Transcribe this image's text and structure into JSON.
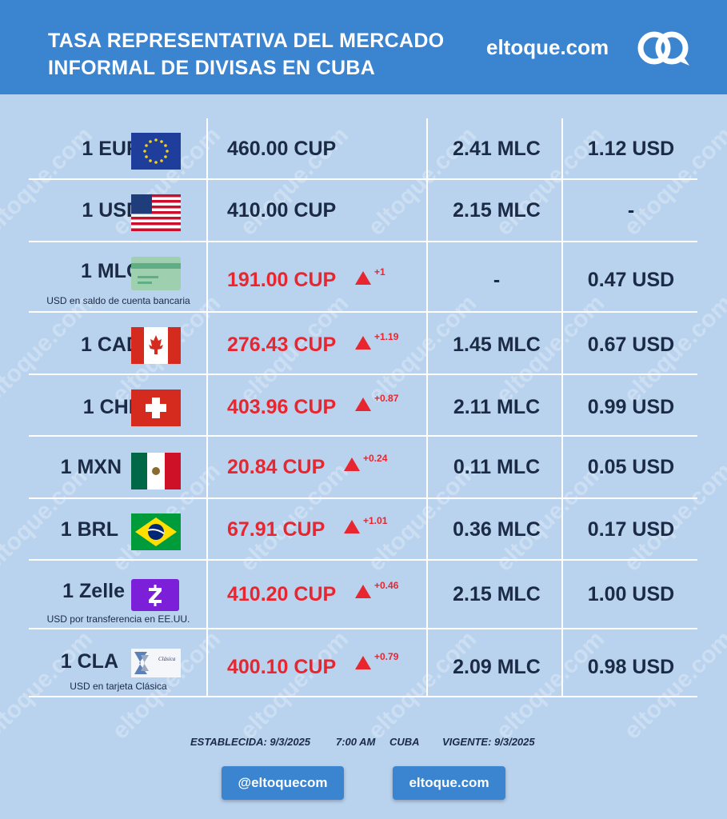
{
  "header": {
    "title_line1": "TASA REPRESENTATIVA DEL MERCADO",
    "title_line2": "INFORMAL DE DIVISAS EN CUBA",
    "brand": "eltoque.com"
  },
  "watermark_text": "eltoque.com",
  "rows": [
    {
      "currency": "1 EUR",
      "flag": "eu-flag-icon",
      "sublabel": "",
      "cup": "460.00 CUP",
      "change": "",
      "mlc": "2.41 MLC",
      "usd": "1.12 USD"
    },
    {
      "currency": "1 USD",
      "flag": "us-flag-icon",
      "sublabel": "",
      "cup": "410.00 CUP",
      "change": "",
      "mlc": "2.15 MLC",
      "usd": "-"
    },
    {
      "currency": "1 MLC",
      "flag": "bank-card-icon",
      "sublabel": "USD en saldo de cuenta bancaria",
      "cup": "191.00 CUP",
      "change": "+1",
      "mlc": "-",
      "usd": "0.47 USD"
    },
    {
      "currency": "1 CAD",
      "flag": "canada-flag-icon",
      "sublabel": "",
      "cup": "276.43 CUP",
      "change": "+1.19",
      "mlc": "1.45 MLC",
      "usd": "0.67 USD"
    },
    {
      "currency": "1 CHF",
      "flag": "swiss-flag-icon",
      "sublabel": "",
      "cup": "403.96 CUP",
      "change": "+0.87",
      "mlc": "2.11 MLC",
      "usd": "0.99 USD"
    },
    {
      "currency": "1 MXN",
      "flag": "mexico-flag-icon",
      "sublabel": "",
      "cup": "20.84 CUP",
      "change": "+0.24",
      "mlc": "0.11 MLC",
      "usd": "0.05 USD"
    },
    {
      "currency": "1 BRL",
      "flag": "brazil-flag-icon",
      "sublabel": "",
      "cup": "67.91 CUP",
      "change": "+1.01",
      "mlc": "0.36 MLC",
      "usd": "0.17 USD"
    },
    {
      "currency": "1 Zelle",
      "flag": "zelle-icon",
      "sublabel": "USD por transferencia en EE.UU.",
      "cup": "410.20 CUP",
      "change": "+0.46",
      "mlc": "2.15 MLC",
      "usd": "1.00 USD"
    },
    {
      "currency": "1 CLA",
      "flag": "clasica-card-icon",
      "sublabel": "USD en tarjeta Clásica",
      "cup": "400.10 CUP",
      "change": "+0.79",
      "mlc": "2.09 MLC",
      "usd": "0.98 USD"
    }
  ],
  "card_text": {
    "clasica": "Clásica"
  },
  "footer": {
    "established": "ESTABLECIDA: 9/3/2025",
    "time": "7:00 AM",
    "place": "CUBA",
    "valid": "VIGENTE: 9/3/2025"
  },
  "buttons": {
    "social": "@eltoquecom",
    "site": "eltoque.com"
  },
  "colors": {
    "header": "#3a84d0",
    "background": "#b9d2ee",
    "up": "#e8262f",
    "text": "#1b2a45"
  }
}
